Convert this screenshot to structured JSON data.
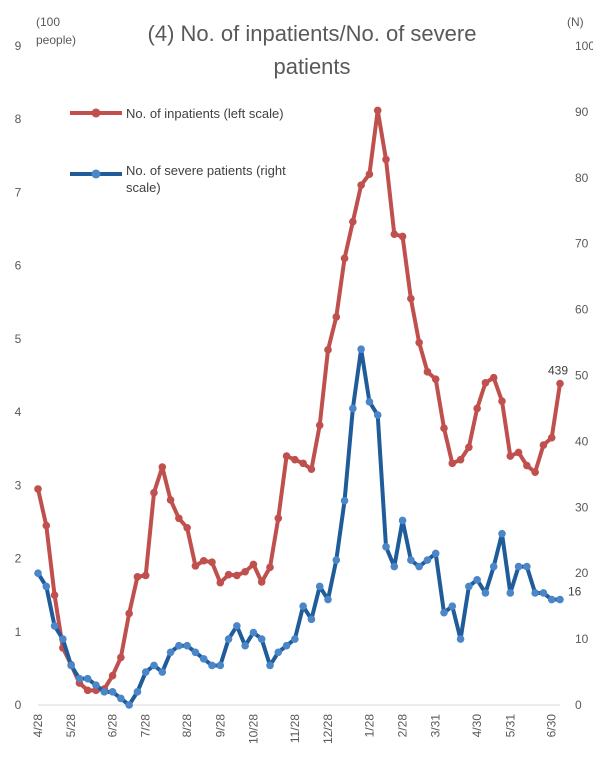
{
  "chart_data": {
    "type": "line",
    "title_lines": [
      "(4) No. of inpatients/No. of severe",
      "patients"
    ],
    "left_unit_lines": [
      "(100",
      "people)"
    ],
    "right_unit": "(N)",
    "left_ylim": [
      0,
      9
    ],
    "left_ticks": [
      "0",
      "1",
      "2",
      "3",
      "4",
      "5",
      "6",
      "7",
      "8",
      "9"
    ],
    "right_ylim": [
      0,
      100
    ],
    "right_ticks": [
      "0",
      "10",
      "20",
      "30",
      "40",
      "50",
      "60",
      "70",
      "80",
      "90",
      "100"
    ],
    "x_tick_labels": [
      "4/28",
      "5/28",
      "6/28",
      "7/28",
      "8/28",
      "9/28",
      "10/28",
      "11/28",
      "12/28",
      "1/28",
      "2/28",
      "3/31",
      "4/30",
      "5/31",
      "6/30"
    ],
    "x_tick_index": [
      0,
      4,
      9,
      13,
      18,
      22,
      26,
      31,
      35,
      40,
      44,
      48,
      53,
      57,
      62
    ],
    "grid": false,
    "legend_position": "top-left",
    "series": [
      {
        "name": "No. of inpatients (left scale)",
        "color": "#c0504d",
        "axis": "left",
        "values": [
          2.95,
          2.45,
          1.5,
          0.78,
          0.55,
          0.3,
          0.2,
          0.2,
          0.22,
          0.4,
          0.65,
          1.25,
          1.75,
          1.77,
          2.9,
          3.25,
          2.8,
          2.55,
          2.42,
          1.9,
          1.97,
          1.95,
          1.67,
          1.78,
          1.77,
          1.82,
          1.92,
          1.68,
          1.88,
          2.55,
          3.4,
          3.35,
          3.3,
          3.22,
          3.82,
          4.85,
          5.3,
          6.1,
          6.6,
          7.1,
          7.25,
          8.12,
          7.45,
          6.43,
          6.4,
          5.55,
          4.95,
          4.55,
          4.45,
          3.78,
          3.3,
          3.35,
          3.52,
          4.05,
          4.4,
          4.47,
          4.15,
          3.4,
          3.45,
          3.27,
          3.18,
          3.55,
          3.65,
          4.39
        ]
      },
      {
        "name": "No. of severe patients (right scale)",
        "color": "#1f5c99",
        "axis": "right",
        "values": [
          20,
          18,
          12,
          10,
          6,
          4,
          4,
          3,
          2,
          2,
          1,
          0,
          2,
          5,
          6,
          5,
          8,
          9,
          9,
          8,
          7,
          6,
          6,
          10,
          12,
          9,
          11,
          10,
          6,
          8,
          9,
          10,
          15,
          13,
          18,
          16,
          22,
          31,
          45,
          54,
          46,
          44,
          24,
          21,
          28,
          22,
          21,
          22,
          23,
          14,
          15,
          10,
          18,
          19,
          17,
          21,
          26,
          17,
          21,
          21,
          17,
          17,
          16,
          16
        ]
      }
    ],
    "annotations": [
      {
        "text": "439",
        "series": 0,
        "index": 63
      },
      {
        "text": "16",
        "series": 1,
        "index": 63
      }
    ]
  }
}
